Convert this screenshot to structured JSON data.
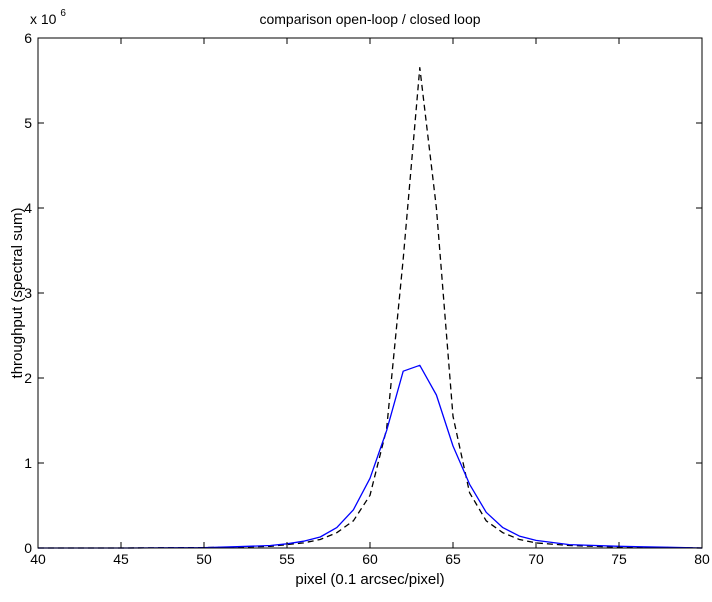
{
  "chart_data": {
    "type": "line",
    "title": "comparison open-loop / closed loop",
    "xlabel": "pixel (0.1 arcsec/pixel)",
    "ylabel": "throughput (spectral sum)",
    "y_multiplier": {
      "base": "x 10",
      "exponent": "6"
    },
    "xlim": [
      40,
      80
    ],
    "ylim": [
      0,
      6
    ],
    "x_ticks": [
      40,
      45,
      50,
      55,
      60,
      65,
      70,
      75,
      80
    ],
    "x_tick_labels": [
      "40",
      "45",
      "50",
      "55",
      "60",
      "65",
      "70",
      "75",
      "80"
    ],
    "y_ticks": [
      0,
      1,
      2,
      3,
      4,
      5,
      6
    ],
    "y_tick_labels": [
      "0",
      "1",
      "2",
      "3",
      "4",
      "5",
      "6"
    ],
    "grid": false,
    "series": [
      {
        "line_style": "dashed",
        "color": "#000000",
        "x": [
          40,
          45,
          50,
          52,
          54,
          55,
          56,
          57,
          58,
          59,
          60,
          61,
          62,
          63,
          64,
          65,
          66,
          67,
          68,
          69,
          70,
          72,
          75,
          78,
          80
        ],
        "y": [
          0,
          0,
          0.005,
          0.01,
          0.02,
          0.04,
          0.06,
          0.1,
          0.18,
          0.32,
          0.62,
          1.4,
          3.4,
          5.65,
          4.0,
          1.55,
          0.65,
          0.32,
          0.18,
          0.1,
          0.06,
          0.03,
          0.01,
          0.005,
          0
        ]
      },
      {
        "line_style": "solid",
        "color": "#0000ff",
        "x": [
          40,
          45,
          50,
          52,
          54,
          55,
          56,
          57,
          58,
          59,
          60,
          61,
          62,
          63,
          64,
          65,
          66,
          67,
          68,
          69,
          70,
          72,
          75,
          78,
          80
        ],
        "y": [
          0,
          0,
          0.005,
          0.015,
          0.03,
          0.05,
          0.08,
          0.13,
          0.24,
          0.45,
          0.82,
          1.38,
          2.08,
          2.15,
          1.8,
          1.2,
          0.75,
          0.42,
          0.24,
          0.14,
          0.09,
          0.04,
          0.02,
          0.008,
          0
        ]
      }
    ]
  }
}
